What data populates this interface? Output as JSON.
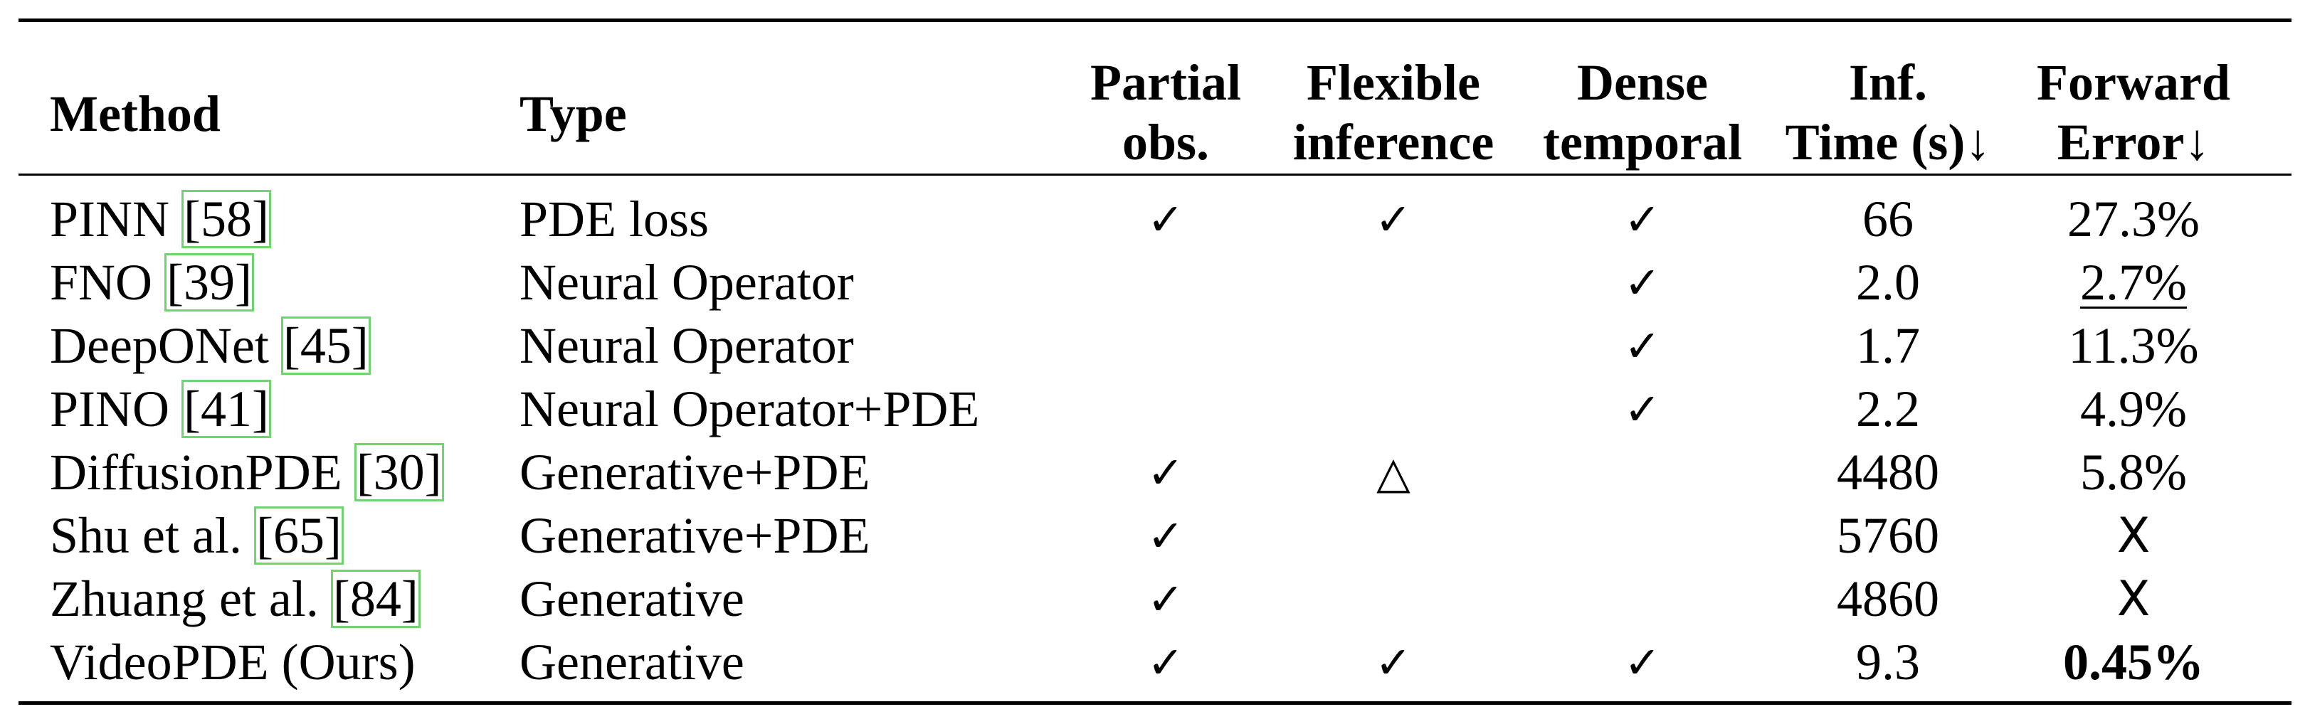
{
  "table": {
    "headers": {
      "method": "Method",
      "type": "Type",
      "partial_line1": "Partial",
      "partial_line2": "obs.",
      "flexible_line1": "Flexible",
      "flexible_line2": "inference",
      "dense_line1": "Dense",
      "dense_line2": "temporal",
      "time_line1": "Inf.",
      "time_line2": "Time (s)↓",
      "error_line1": "Forward",
      "error_line2": "Error↓"
    },
    "rows": [
      {
        "method": "PINN ",
        "ref": "[58]",
        "type": "PDE loss",
        "partial": "✓",
        "flexible": "✓",
        "dense": "✓",
        "time": "66",
        "error": "27.3%"
      },
      {
        "method": "FNO ",
        "ref": "[39]",
        "type": "Neural Operator",
        "partial": "",
        "flexible": "",
        "dense": "✓",
        "time": "2.0",
        "error": "2.7%"
      },
      {
        "method": "DeepONet ",
        "ref": "[45]",
        "type": "Neural Operator",
        "partial": "",
        "flexible": "",
        "dense": "✓",
        "time": "1.7",
        "error": "11.3%"
      },
      {
        "method": "PINO ",
        "ref": "[41]",
        "type": "Neural Operator+PDE",
        "partial": "",
        "flexible": "",
        "dense": "✓",
        "time": "2.2",
        "error": "4.9%"
      },
      {
        "method": "DiffusionPDE ",
        "ref": "[30]",
        "type": "Generative+PDE",
        "partial": "✓",
        "flexible": "△",
        "dense": "",
        "time": "4480",
        "error": "5.8%"
      },
      {
        "method": "Shu et al. ",
        "ref": "[65]",
        "type": "Generative+PDE",
        "partial": "✓",
        "flexible": "",
        "dense": "",
        "time": "5760",
        "error": "X"
      },
      {
        "method": "Zhuang et al. ",
        "ref": "[84]",
        "type": "Generative",
        "partial": "✓",
        "flexible": "",
        "dense": "",
        "time": "4860",
        "error": "X"
      },
      {
        "method": "VideoPDE (Ours)",
        "ref": "",
        "type": "Generative",
        "partial": "✓",
        "flexible": "✓",
        "dense": "✓",
        "time": "9.3",
        "error": "0.45%"
      }
    ]
  }
}
